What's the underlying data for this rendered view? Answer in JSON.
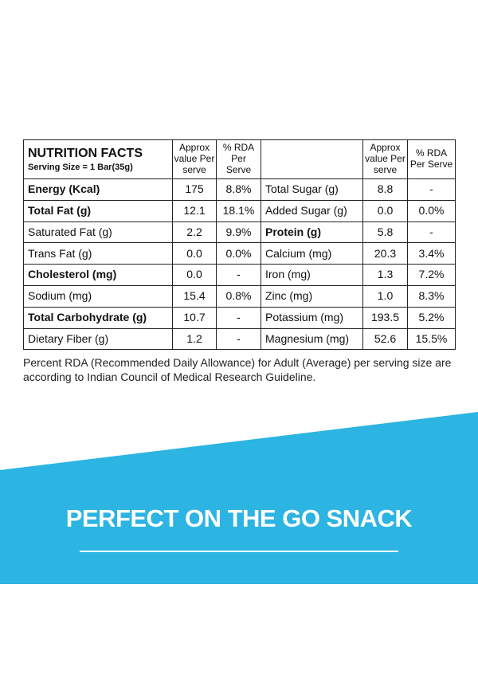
{
  "table": {
    "title": "NUTRITION FACTS",
    "serving_size": "Serving Size = 1 Bar(35g)",
    "col_approx": "Approx value Per serve",
    "col_rda": "% RDA Per Serve",
    "rows": [
      {
        "left": {
          "label": "Energy (Kcal)",
          "bold": true,
          "value": "175",
          "rda": "8.8%"
        },
        "right": {
          "label": "Total Sugar (g)",
          "bold": false,
          "value": "8.8",
          "rda": "-"
        }
      },
      {
        "left": {
          "label": "Total Fat (g)",
          "bold": true,
          "value": "12.1",
          "rda": "18.1%"
        },
        "right": {
          "label": "Added Sugar (g)",
          "bold": false,
          "value": "0.0",
          "rda": "0.0%"
        }
      },
      {
        "left": {
          "label": "Saturated Fat (g)",
          "bold": false,
          "value": "2.2",
          "rda": "9.9%"
        },
        "right": {
          "label": "Protein (g)",
          "bold": true,
          "value": "5.8",
          "rda": "-"
        }
      },
      {
        "left": {
          "label": "Trans Fat (g)",
          "bold": false,
          "value": "0.0",
          "rda": "0.0%"
        },
        "right": {
          "label": "Calcium (mg)",
          "bold": false,
          "value": "20.3",
          "rda": "3.4%"
        }
      },
      {
        "left": {
          "label": "Cholesterol (mg)",
          "bold": true,
          "value": "0.0",
          "rda": "-"
        },
        "right": {
          "label": "Iron (mg)",
          "bold": false,
          "value": "1.3",
          "rda": "7.2%"
        }
      },
      {
        "left": {
          "label": "Sodium (mg)",
          "bold": false,
          "value": "15.4",
          "rda": "0.8%"
        },
        "right": {
          "label": "Zinc (mg)",
          "bold": false,
          "value": "1.0",
          "rda": "8.3%"
        }
      },
      {
        "left": {
          "label": "Total Carbohydrate (g)",
          "bold": true,
          "value": "10.7",
          "rda": "-"
        },
        "right": {
          "label": "Potassium (mg)",
          "bold": false,
          "value": "193.5",
          "rda": "5.2%"
        }
      },
      {
        "left": {
          "label": "Dietary Fiber (g)",
          "bold": false,
          "value": "1.2",
          "rda": "-"
        },
        "right": {
          "label": "Magnesium (mg)",
          "bold": false,
          "value": "52.6",
          "rda": "15.5%"
        }
      }
    ]
  },
  "footnote": "Percent RDA (Recommended Daily Allowance) for Adult (Average) per serving size are according to Indian Council of Medical Research Guideline.",
  "banner": {
    "tagline": "PERFECT ON THE GO SNACK",
    "color": "#2cb4e2"
  }
}
